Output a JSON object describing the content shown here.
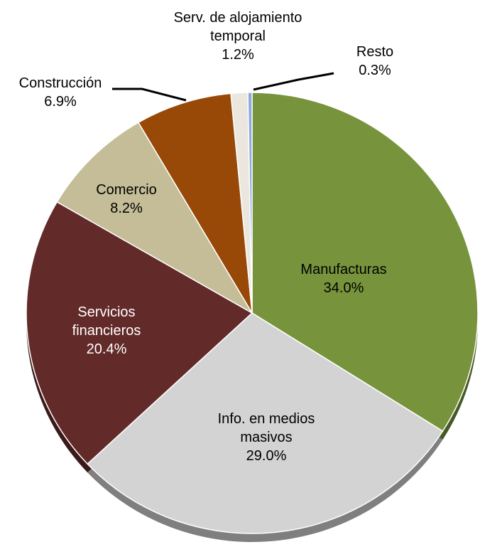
{
  "chart_data": {
    "type": "pie",
    "categories": [
      "Manufacturas",
      "Info. en medios masivos",
      "Servicios financieros",
      "Comercio",
      "Construcción",
      "Serv. de alojamiento temporal",
      "Resto"
    ],
    "values": [
      34.0,
      29.0,
      20.4,
      8.2,
      6.9,
      1.2,
      0.3
    ],
    "value_labels": [
      "34.0%",
      "29.0%",
      "20.4%",
      "8.2%",
      "6.9%",
      "1.2%",
      "0.3%"
    ],
    "colors": [
      "#77933c",
      "#d3d3d3",
      "#632a2a",
      "#c4bd97",
      "#984807",
      "#ebe7df",
      "#8eaadb"
    ]
  }
}
